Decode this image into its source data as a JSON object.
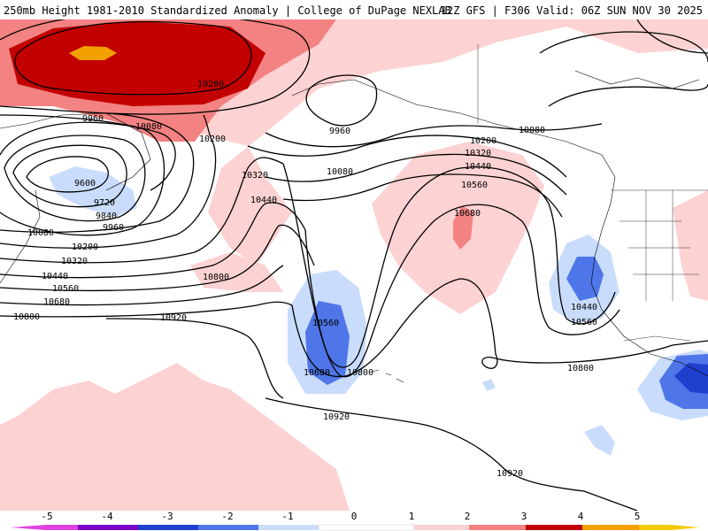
{
  "header": {
    "left": "250mb Height 1981-2010 Standardized Anomaly | College of DuPage NEXLAB",
    "right": "12Z GFS | F306 Valid: 06Z SUN NOV 30 2025"
  },
  "colors": {
    "ocean": "#ffffff",
    "anom_m5": "#e040e0",
    "anom_m4": "#7a00c8",
    "anom_m3": "#1f3fcf",
    "anom_m2": "#4f76e8",
    "anom_m1": "#c9dcfb",
    "anom_p1": "#fcd2d2",
    "anom_p2": "#f38282",
    "anom_p3": "#c20000",
    "anom_p4": "#f3a000",
    "anom_p5": "#f3c800",
    "contour": "#000000"
  },
  "contour_labels": [
    {
      "text": "10200",
      "pos": "north-pacific-top"
    },
    {
      "text": "9960",
      "pos": "far-west"
    },
    {
      "text": "10080",
      "pos": "west-upper"
    },
    {
      "text": "10200",
      "pos": "west-mid"
    },
    {
      "text": "9600",
      "pos": "low-center"
    },
    {
      "text": "9720",
      "pos": "low-ring"
    },
    {
      "text": "9840",
      "pos": "low-ring"
    },
    {
      "text": "9960",
      "pos": "low-ring"
    },
    {
      "text": "10080",
      "pos": "west-left"
    },
    {
      "text": "10200",
      "pos": "west-left"
    },
    {
      "text": "10320",
      "pos": "west-left"
    },
    {
      "text": "10440",
      "pos": "west-left"
    },
    {
      "text": "10560",
      "pos": "west-left"
    },
    {
      "text": "10680",
      "pos": "west-left"
    },
    {
      "text": "10800",
      "pos": "west-left"
    },
    {
      "text": "9960",
      "pos": "alaska"
    },
    {
      "text": "10080",
      "pos": "gulf-alaska"
    },
    {
      "text": "10320",
      "pos": "central"
    },
    {
      "text": "10440",
      "pos": "central"
    },
    {
      "text": "10800",
      "pos": "central"
    },
    {
      "text": "10920",
      "pos": "central"
    },
    {
      "text": "10560",
      "pos": "trough"
    },
    {
      "text": "10680",
      "pos": "trough"
    },
    {
      "text": "10800",
      "pos": "trough"
    },
    {
      "text": "10200",
      "pos": "ridge"
    },
    {
      "text": "10320",
      "pos": "ridge"
    },
    {
      "text": "10440",
      "pos": "ridge"
    },
    {
      "text": "10560",
      "pos": "ridge"
    },
    {
      "text": "10680",
      "pos": "ridge"
    },
    {
      "text": "10080",
      "pos": "canada"
    },
    {
      "text": "10440",
      "pos": "west-coast"
    },
    {
      "text": "10560",
      "pos": "west-coast"
    },
    {
      "text": "10800",
      "pos": "subtropics"
    },
    {
      "text": "10920",
      "pos": "subtropics"
    },
    {
      "text": "10920",
      "pos": "south"
    }
  ],
  "legend": {
    "ticks": [
      "-5",
      "-4",
      "-3",
      "-2",
      "-1",
      "0",
      "1",
      "2",
      "3",
      "4",
      "5"
    ]
  }
}
